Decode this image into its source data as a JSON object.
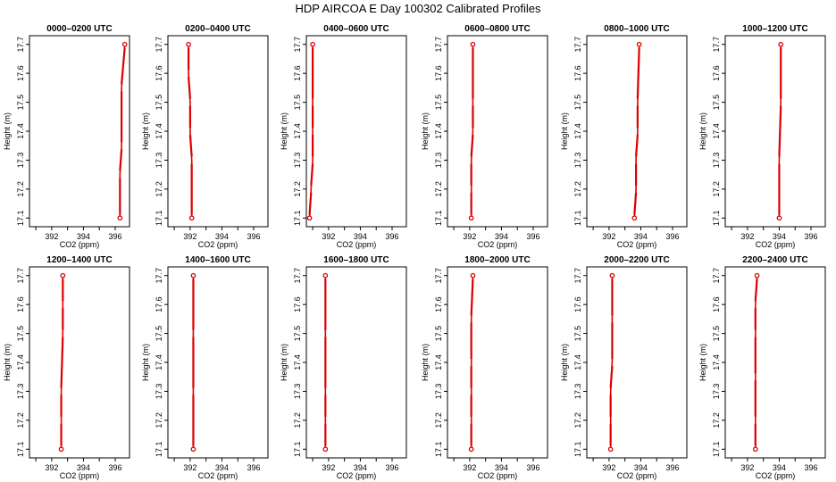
{
  "figure": {
    "title": "HDP  AIRCOA E  Day 100302  Calibrated Profiles"
  },
  "colors": {
    "profile": "#dd0000",
    "axes": "#000000"
  },
  "chart_data": [
    {
      "type": "line",
      "title": "0000–0200 UTC",
      "xlabel": "CO2 (ppm)",
      "ylabel": "Height (m)",
      "xlim": [
        390.6,
        396.9
      ],
      "ylim": [
        17.07,
        17.73
      ],
      "xticks": [
        392,
        394,
        396
      ],
      "yticks": [
        17.1,
        17.2,
        17.3,
        17.4,
        17.5,
        17.6,
        17.7
      ],
      "x": [
        396.3,
        396.3,
        396.4,
        396.4,
        396.6
      ],
      "y": [
        17.1,
        17.25,
        17.35,
        17.55,
        17.7
      ],
      "endpoints": [
        {
          "x": 396.3,
          "y": 17.1
        },
        {
          "x": 396.6,
          "y": 17.7
        }
      ]
    },
    {
      "type": "line",
      "title": "0200–0400 UTC",
      "xlabel": "CO2 (ppm)",
      "ylabel": "Height (m)",
      "xlim": [
        390.6,
        396.9
      ],
      "ylim": [
        17.07,
        17.73
      ],
      "xticks": [
        392,
        394,
        396
      ],
      "yticks": [
        17.1,
        17.2,
        17.3,
        17.4,
        17.5,
        17.6,
        17.7
      ],
      "x": [
        392.1,
        392.1,
        392.0,
        392.0,
        391.9,
        391.9
      ],
      "y": [
        17.1,
        17.3,
        17.4,
        17.5,
        17.6,
        17.7
      ],
      "endpoints": [
        {
          "x": 392.1,
          "y": 17.1
        },
        {
          "x": 391.9,
          "y": 17.7
        }
      ]
    },
    {
      "type": "line",
      "title": "0400–0600 UTC",
      "xlabel": "CO2 (ppm)",
      "ylabel": "Height (m)",
      "xlim": [
        390.6,
        396.9
      ],
      "ylim": [
        17.07,
        17.73
      ],
      "xticks": [
        392,
        394,
        396
      ],
      "yticks": [
        17.1,
        17.2,
        17.3,
        17.4,
        17.5,
        17.6,
        17.7
      ],
      "x": [
        390.8,
        390.9,
        391.0,
        391.0,
        391.0,
        391.0
      ],
      "y": [
        17.1,
        17.2,
        17.3,
        17.4,
        17.5,
        17.7
      ],
      "endpoints": [
        {
          "x": 390.8,
          "y": 17.1
        },
        {
          "x": 391.0,
          "y": 17.7
        }
      ]
    },
    {
      "type": "line",
      "title": "0600–0800 UTC",
      "xlabel": "CO2 (ppm)",
      "ylabel": "Height (m)",
      "xlim": [
        390.6,
        396.9
      ],
      "ylim": [
        17.07,
        17.73
      ],
      "xticks": [
        392,
        394,
        396
      ],
      "yticks": [
        17.1,
        17.2,
        17.3,
        17.4,
        17.5,
        17.6,
        17.7
      ],
      "x": [
        392.1,
        392.1,
        392.1,
        392.2,
        392.2,
        392.2
      ],
      "y": [
        17.1,
        17.2,
        17.3,
        17.4,
        17.5,
        17.7
      ],
      "endpoints": [
        {
          "x": 392.1,
          "y": 17.1
        },
        {
          "x": 392.2,
          "y": 17.7
        }
      ]
    },
    {
      "type": "line",
      "title": "0800–1000 UTC",
      "xlabel": "CO2 (ppm)",
      "ylabel": "Height (m)",
      "xlim": [
        390.6,
        396.9
      ],
      "ylim": [
        17.07,
        17.73
      ],
      "xticks": [
        392,
        394,
        396
      ],
      "yticks": [
        17.1,
        17.2,
        17.3,
        17.4,
        17.5,
        17.6,
        17.7
      ],
      "x": [
        393.6,
        393.7,
        393.7,
        393.8,
        393.8,
        393.9
      ],
      "y": [
        17.1,
        17.2,
        17.3,
        17.4,
        17.5,
        17.7
      ],
      "endpoints": [
        {
          "x": 393.6,
          "y": 17.1
        },
        {
          "x": 393.9,
          "y": 17.7
        }
      ]
    },
    {
      "type": "line",
      "title": "1000–1200 UTC",
      "xlabel": "CO2 (ppm)",
      "ylabel": "Height (m)",
      "xlim": [
        390.6,
        396.9
      ],
      "ylim": [
        17.07,
        17.73
      ],
      "xticks": [
        392,
        394,
        396
      ],
      "yticks": [
        17.1,
        17.2,
        17.3,
        17.4,
        17.5,
        17.6,
        17.7
      ],
      "x": [
        394.0,
        394.0,
        394.1,
        394.1
      ],
      "y": [
        17.1,
        17.3,
        17.5,
        17.7
      ],
      "endpoints": [
        {
          "x": 394.0,
          "y": 17.1
        },
        {
          "x": 394.1,
          "y": 17.7
        }
      ]
    },
    {
      "type": "line",
      "title": "1200–1400 UTC",
      "xlabel": "CO2 (ppm)",
      "ylabel": "Height (m)",
      "xlim": [
        390.6,
        396.9
      ],
      "ylim": [
        17.07,
        17.73
      ],
      "xticks": [
        392,
        394,
        396
      ],
      "yticks": [
        17.1,
        17.2,
        17.3,
        17.4,
        17.5,
        17.6,
        17.7
      ],
      "x": [
        392.6,
        392.6,
        392.6,
        392.7,
        392.7,
        392.7
      ],
      "y": [
        17.1,
        17.2,
        17.3,
        17.5,
        17.6,
        17.7
      ],
      "endpoints": [
        {
          "x": 392.6,
          "y": 17.1
        },
        {
          "x": 392.7,
          "y": 17.7
        }
      ]
    },
    {
      "type": "line",
      "title": "1400–1600 UTC",
      "xlabel": "CO2 (ppm)",
      "ylabel": "Height (m)",
      "xlim": [
        390.6,
        396.9
      ],
      "ylim": [
        17.07,
        17.73
      ],
      "xticks": [
        392,
        394,
        396
      ],
      "yticks": [
        17.1,
        17.2,
        17.3,
        17.4,
        17.5,
        17.6,
        17.7
      ],
      "x": [
        392.2,
        392.2,
        392.2,
        392.2
      ],
      "y": [
        17.1,
        17.3,
        17.5,
        17.7
      ],
      "endpoints": [
        {
          "x": 392.2,
          "y": 17.1
        },
        {
          "x": 392.2,
          "y": 17.7
        }
      ]
    },
    {
      "type": "line",
      "title": "1600–1800 UTC",
      "xlabel": "CO2 (ppm)",
      "ylabel": "Height (m)",
      "xlim": [
        390.6,
        396.9
      ],
      "ylim": [
        17.07,
        17.73
      ],
      "xticks": [
        392,
        394,
        396
      ],
      "yticks": [
        17.1,
        17.2,
        17.3,
        17.4,
        17.5,
        17.6,
        17.7
      ],
      "x": [
        391.8,
        391.8,
        391.8,
        391.8,
        391.8
      ],
      "y": [
        17.1,
        17.2,
        17.3,
        17.5,
        17.7
      ],
      "endpoints": [
        {
          "x": 391.8,
          "y": 17.1
        },
        {
          "x": 391.8,
          "y": 17.7
        }
      ]
    },
    {
      "type": "line",
      "title": "1800–2000 UTC",
      "xlabel": "CO2 (ppm)",
      "ylabel": "Height (m)",
      "xlim": [
        390.6,
        396.9
      ],
      "ylim": [
        17.07,
        17.73
      ],
      "xticks": [
        392,
        394,
        396
      ],
      "yticks": [
        17.1,
        17.2,
        17.3,
        17.4,
        17.5,
        17.6,
        17.7
      ],
      "x": [
        392.1,
        392.1,
        392.1,
        392.1,
        392.1,
        392.2
      ],
      "y": [
        17.1,
        17.2,
        17.3,
        17.4,
        17.55,
        17.7
      ],
      "endpoints": [
        {
          "x": 392.1,
          "y": 17.1
        },
        {
          "x": 392.2,
          "y": 17.7
        }
      ]
    },
    {
      "type": "line",
      "title": "2000–2200 UTC",
      "xlabel": "CO2 (ppm)",
      "ylabel": "Height (m)",
      "xlim": [
        390.6,
        396.9
      ],
      "ylim": [
        17.07,
        17.73
      ],
      "xticks": [
        392,
        394,
        396
      ],
      "yticks": [
        17.1,
        17.2,
        17.3,
        17.4,
        17.5,
        17.6,
        17.7
      ],
      "x": [
        392.1,
        392.1,
        392.1,
        392.2,
        392.2,
        392.2
      ],
      "y": [
        17.1,
        17.2,
        17.3,
        17.4,
        17.55,
        17.7
      ],
      "endpoints": [
        {
          "x": 392.1,
          "y": 17.1
        },
        {
          "x": 392.2,
          "y": 17.7
        }
      ]
    },
    {
      "type": "line",
      "title": "2200–2400 UTC",
      "xlabel": "CO2 (ppm)",
      "ylabel": "Height (m)",
      "xlim": [
        390.6,
        396.9
      ],
      "ylim": [
        17.07,
        17.73
      ],
      "xticks": [
        392,
        394,
        396
      ],
      "yticks": [
        17.1,
        17.2,
        17.3,
        17.4,
        17.5,
        17.6,
        17.7
      ],
      "x": [
        392.5,
        392.5,
        392.5,
        392.5,
        392.5,
        392.6
      ],
      "y": [
        17.1,
        17.2,
        17.35,
        17.5,
        17.6,
        17.7
      ],
      "endpoints": [
        {
          "x": 392.5,
          "y": 17.1
        },
        {
          "x": 392.6,
          "y": 17.7
        }
      ]
    }
  ]
}
